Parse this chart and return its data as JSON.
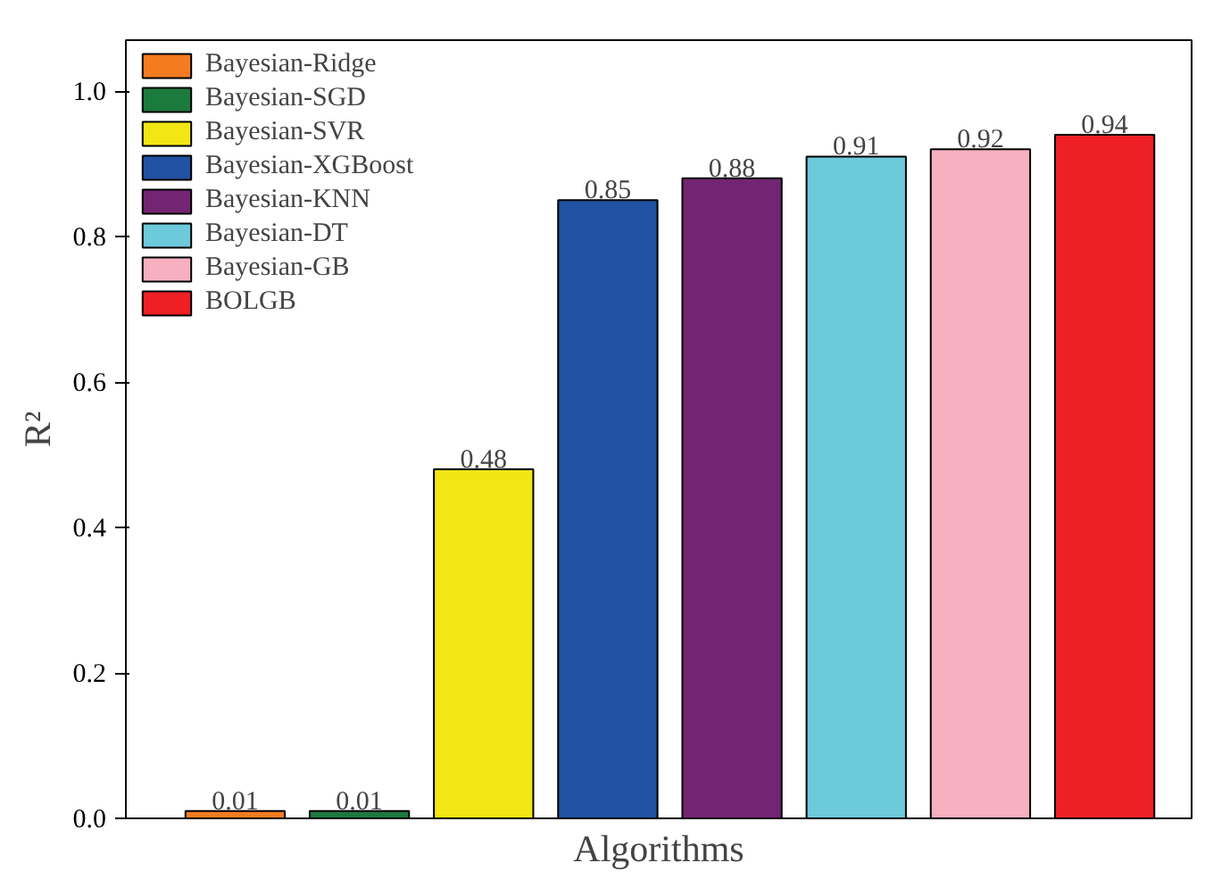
{
  "chart_data": {
    "type": "bar",
    "xlabel": "Algorithms",
    "ylabel": "R²",
    "categories": [
      null,
      null,
      null,
      null,
      null,
      null,
      null,
      null
    ],
    "series": [
      {
        "name": "Bayesian-Ridge",
        "color": "#f47b20",
        "values": [
          0.01,
          null,
          null,
          null,
          null,
          null,
          null,
          null
        ]
      },
      {
        "name": "Bayesian-SGD",
        "color": "#1b7a3e",
        "values": [
          null,
          0.01,
          null,
          null,
          null,
          null,
          null,
          null
        ]
      },
      {
        "name": "Bayesian-SVR",
        "color": "#f2e614",
        "values": [
          null,
          null,
          0.48,
          null,
          null,
          null,
          null,
          null
        ]
      },
      {
        "name": "Bayesian-XGBoost",
        "color": "#2152a3",
        "values": [
          null,
          null,
          null,
          0.85,
          null,
          null,
          null,
          null
        ]
      },
      {
        "name": "Bayesian-KNN",
        "color": "#722573",
        "values": [
          null,
          null,
          null,
          null,
          0.88,
          null,
          null,
          null
        ]
      },
      {
        "name": "Bayesian-DT",
        "color": "#6ccadb",
        "values": [
          null,
          null,
          null,
          null,
          null,
          0.91,
          null,
          null
        ]
      },
      {
        "name": "Bayesian-GB",
        "color": "#f6b0c0",
        "values": [
          null,
          null,
          null,
          null,
          null,
          null,
          0.92,
          null
        ]
      },
      {
        "name": "BOLGB",
        "color": "#ee1f25",
        "values": [
          null,
          null,
          null,
          null,
          null,
          null,
          null,
          0.94
        ]
      }
    ],
    "ylim": [
      0,
      1.07
    ],
    "stacked": true,
    "yticks": [
      {
        "value": 0,
        "label": "0.0"
      },
      {
        "value": 0.2,
        "label": "0.2"
      },
      {
        "value": 0.4,
        "label": "0.4"
      },
      {
        "value": 0.6,
        "label": "0.6"
      },
      {
        "value": 0.8,
        "label": "0.8"
      },
      {
        "value": 1.0,
        "label": "1.0"
      }
    ],
    "data_labels": true,
    "legend": "top left",
    "grid": false
  }
}
